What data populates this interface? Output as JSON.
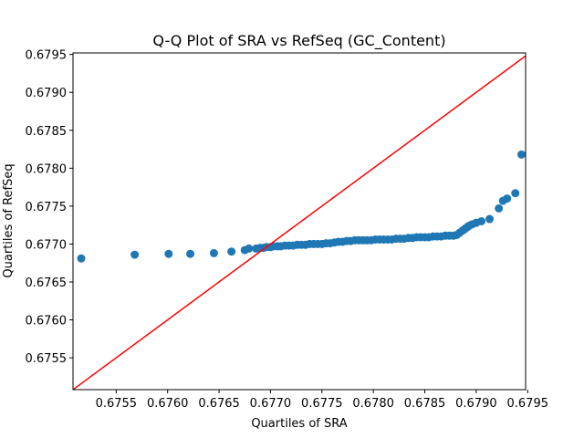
{
  "chart_data": {
    "type": "scatter",
    "title": "Q-Q Plot of SRA vs RefSeq (GC_Content)",
    "xlabel": "Quartiles of SRA",
    "ylabel": "Quartiles of RefSeq",
    "xlim": [
      0.67508,
      0.67948
    ],
    "ylim": [
      0.67508,
      0.67952
    ],
    "xticks": [
      "0.6755",
      "0.6760",
      "0.6765",
      "0.6770",
      "0.6775",
      "0.6780",
      "0.6785",
      "0.6790",
      "0.6795"
    ],
    "yticks": [
      "0.6755",
      "0.6760",
      "0.6765",
      "0.6770",
      "0.6775",
      "0.6780",
      "0.6785",
      "0.6790",
      "0.6795"
    ],
    "marker_color": "#1f77b4",
    "reference_line_color": "#ff0000",
    "reference_line": {
      "x": [
        0.67508,
        0.67952
      ],
      "y": [
        0.67508,
        0.67952
      ]
    },
    "grid": false,
    "points": [
      [
        0.67516,
        0.67681
      ],
      [
        0.67568,
        0.67686
      ],
      [
        0.67601,
        0.67687
      ],
      [
        0.67622,
        0.67687
      ],
      [
        0.67645,
        0.67688
      ],
      [
        0.67662,
        0.6769
      ],
      [
        0.67675,
        0.67692
      ],
      [
        0.67679,
        0.67694
      ],
      [
        0.67686,
        0.67694
      ],
      [
        0.6769,
        0.67695
      ],
      [
        0.67693,
        0.67695
      ],
      [
        0.67696,
        0.67696
      ],
      [
        0.677,
        0.67696
      ],
      [
        0.67703,
        0.67697
      ],
      [
        0.67707,
        0.67697
      ],
      [
        0.6771,
        0.67697
      ],
      [
        0.67714,
        0.67698
      ],
      [
        0.67718,
        0.67698
      ],
      [
        0.67722,
        0.67698
      ],
      [
        0.67726,
        0.67699
      ],
      [
        0.6773,
        0.67699
      ],
      [
        0.67734,
        0.67699
      ],
      [
        0.67738,
        0.677
      ],
      [
        0.67742,
        0.677
      ],
      [
        0.67746,
        0.677
      ],
      [
        0.6775,
        0.677
      ],
      [
        0.67754,
        0.67701
      ],
      [
        0.67758,
        0.67701
      ],
      [
        0.67762,
        0.67702
      ],
      [
        0.67766,
        0.67703
      ],
      [
        0.6777,
        0.67703
      ],
      [
        0.67774,
        0.67704
      ],
      [
        0.67778,
        0.67704
      ],
      [
        0.67782,
        0.67705
      ],
      [
        0.67786,
        0.67705
      ],
      [
        0.6779,
        0.67705
      ],
      [
        0.67794,
        0.67705
      ],
      [
        0.67798,
        0.67705
      ],
      [
        0.67802,
        0.67706
      ],
      [
        0.67806,
        0.67706
      ],
      [
        0.6781,
        0.67706
      ],
      [
        0.67814,
        0.67706
      ],
      [
        0.67818,
        0.67706
      ],
      [
        0.67822,
        0.67707
      ],
      [
        0.67826,
        0.67707
      ],
      [
        0.6783,
        0.67707
      ],
      [
        0.67834,
        0.67708
      ],
      [
        0.67838,
        0.67708
      ],
      [
        0.67842,
        0.67709
      ],
      [
        0.67846,
        0.67709
      ],
      [
        0.6785,
        0.67709
      ],
      [
        0.67854,
        0.67709
      ],
      [
        0.67858,
        0.6771
      ],
      [
        0.67862,
        0.6771
      ],
      [
        0.67866,
        0.6771
      ],
      [
        0.6787,
        0.67711
      ],
      [
        0.67874,
        0.67711
      ],
      [
        0.67878,
        0.67711
      ],
      [
        0.67881,
        0.67712
      ],
      [
        0.67884,
        0.67715
      ],
      [
        0.67887,
        0.67718
      ],
      [
        0.67889,
        0.6772
      ],
      [
        0.67891,
        0.67722
      ],
      [
        0.67893,
        0.67724
      ],
      [
        0.67896,
        0.67726
      ],
      [
        0.679,
        0.67728
      ],
      [
        0.67905,
        0.6773
      ],
      [
        0.67913,
        0.67733
      ],
      [
        0.67922,
        0.67747
      ],
      [
        0.67926,
        0.67757
      ],
      [
        0.6793,
        0.6776
      ],
      [
        0.67938,
        0.67767
      ],
      [
        0.67944,
        0.67818
      ]
    ]
  }
}
